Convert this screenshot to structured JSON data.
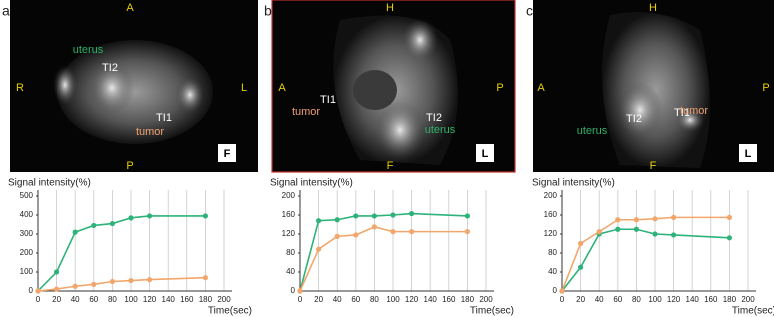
{
  "panels": [
    {
      "label": "a",
      "annotations": [
        {
          "text": "A",
          "color": "#e8d000"
        },
        {
          "text": "R",
          "color": "#e8d000"
        },
        {
          "text": "L",
          "color": "#e8d000"
        },
        {
          "text": "P",
          "color": "#e8d000"
        },
        {
          "text": "uterus",
          "color": "#2fb26a"
        },
        {
          "text": "TI2",
          "color": "#ffffff"
        },
        {
          "text": "TI1",
          "color": "#ffffff"
        },
        {
          "text": "tumor",
          "color": "#f0a070"
        },
        {
          "text": "F",
          "color": "#000000"
        }
      ]
    },
    {
      "label": "b",
      "annotations": [
        {
          "text": "H",
          "color": "#e8d000"
        },
        {
          "text": "A",
          "color": "#e8d000"
        },
        {
          "text": "P",
          "color": "#e8d000"
        },
        {
          "text": "F",
          "color": "#e8d000"
        },
        {
          "text": "TI1",
          "color": "#ffffff"
        },
        {
          "text": "tumor",
          "color": "#f0a070"
        },
        {
          "text": "TI2",
          "color": "#ffffff"
        },
        {
          "text": "uterus",
          "color": "#2fb26a"
        },
        {
          "text": "L",
          "color": "#000000"
        }
      ]
    },
    {
      "label": "c",
      "annotations": [
        {
          "text": "H",
          "color": "#e8d000"
        },
        {
          "text": "A",
          "color": "#e8d000"
        },
        {
          "text": "P",
          "color": "#e8d000"
        },
        {
          "text": "F",
          "color": "#e8d000"
        },
        {
          "text": "uterus",
          "color": "#2fb26a"
        },
        {
          "text": "TI2",
          "color": "#ffffff"
        },
        {
          "text": "TI1",
          "color": "#ffffff"
        },
        {
          "text": "tumor",
          "color": "#f0a070"
        },
        {
          "text": "L",
          "color": "#000000"
        }
      ]
    }
  ],
  "chart_data": [
    {
      "type": "line",
      "y_label": "Signal intensity(%)",
      "x_label": "Time(sec)",
      "x": [
        0,
        20,
        40,
        60,
        80,
        100,
        120,
        180
      ],
      "series": [
        {
          "color": "#2db37a",
          "values": [
            0,
            100,
            310,
            345,
            355,
            385,
            395,
            395
          ]
        },
        {
          "color": "#f2a66b",
          "values": [
            0,
            10,
            25,
            35,
            50,
            55,
            60,
            70
          ]
        }
      ],
      "xlim": [
        0,
        200
      ],
      "xticks": [
        0,
        20,
        40,
        60,
        80,
        100,
        120,
        140,
        160,
        180,
        200
      ],
      "ylim": [
        0,
        500
      ],
      "yticks": [
        0,
        100,
        200,
        300,
        400,
        500
      ],
      "grid": true
    },
    {
      "type": "line",
      "y_label": "Signal intensity(%)",
      "x_label": "Time(sec)",
      "x": [
        0,
        20,
        40,
        60,
        80,
        100,
        120,
        180
      ],
      "series": [
        {
          "color": "#2db37a",
          "values": [
            0,
            148,
            150,
            158,
            158,
            160,
            163,
            158
          ]
        },
        {
          "color": "#f2a66b",
          "values": [
            0,
            88,
            115,
            118,
            135,
            125,
            125,
            125
          ]
        }
      ],
      "xlim": [
        0,
        200
      ],
      "xticks": [
        0,
        20,
        40,
        60,
        80,
        100,
        120,
        140,
        160,
        180,
        200
      ],
      "ylim": [
        0,
        200
      ],
      "yticks": [
        0,
        40,
        80,
        120,
        160,
        200
      ],
      "grid": true
    },
    {
      "type": "line",
      "y_label": "Signal intensity(%)",
      "x_label": "Time(sec)",
      "x": [
        0,
        20,
        40,
        60,
        80,
        100,
        120,
        180
      ],
      "series": [
        {
          "color": "#2db37a",
          "values": [
            0,
            50,
            120,
            130,
            130,
            120,
            118,
            112
          ]
        },
        {
          "color": "#f2a66b",
          "values": [
            0,
            100,
            125,
            150,
            150,
            152,
            155,
            155
          ]
        }
      ],
      "xlim": [
        0,
        200
      ],
      "xticks": [
        0,
        20,
        40,
        60,
        80,
        100,
        120,
        140,
        160,
        180,
        200
      ],
      "ylim": [
        0,
        200
      ],
      "yticks": [
        0,
        40,
        80,
        120,
        160,
        200
      ],
      "grid": true
    }
  ]
}
